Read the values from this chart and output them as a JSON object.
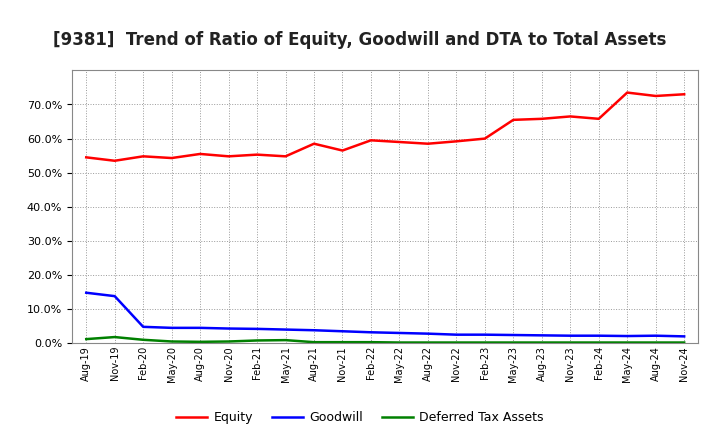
{
  "title": "[9381]  Trend of Ratio of Equity, Goodwill and DTA to Total Assets",
  "x_labels": [
    "Aug-19",
    "Nov-19",
    "Feb-20",
    "May-20",
    "Aug-20",
    "Nov-20",
    "Feb-21",
    "May-21",
    "Aug-21",
    "Nov-21",
    "Feb-22",
    "May-22",
    "Aug-22",
    "Nov-22",
    "Feb-23",
    "May-23",
    "Aug-23",
    "Nov-23",
    "Feb-24",
    "May-24",
    "Aug-24",
    "Nov-24"
  ],
  "equity": [
    54.5,
    53.5,
    54.8,
    54.3,
    55.5,
    54.8,
    55.3,
    54.8,
    58.5,
    56.5,
    59.5,
    59.0,
    58.5,
    59.2,
    60.0,
    65.5,
    65.8,
    66.5,
    65.8,
    73.5,
    72.5,
    73.0
  ],
  "goodwill": [
    14.8,
    13.8,
    4.8,
    4.5,
    4.5,
    4.3,
    4.2,
    4.0,
    3.8,
    3.5,
    3.2,
    3.0,
    2.8,
    2.5,
    2.5,
    2.4,
    2.3,
    2.2,
    2.2,
    2.1,
    2.2,
    2.0
  ],
  "dta": [
    1.2,
    1.8,
    1.0,
    0.5,
    0.4,
    0.5,
    0.8,
    0.9,
    0.3,
    0.3,
    0.3,
    0.2,
    0.2,
    0.2,
    0.2,
    0.2,
    0.2,
    0.2,
    0.2,
    0.2,
    0.2,
    0.2
  ],
  "equity_color": "#ff0000",
  "goodwill_color": "#0000ff",
  "dta_color": "#008000",
  "ylim": [
    0,
    80
  ],
  "yticks": [
    0,
    10,
    20,
    30,
    40,
    50,
    60,
    70
  ],
  "background_color": "#ffffff",
  "plot_bg_color": "#ffffff",
  "grid_color": "#999999",
  "title_fontsize": 12,
  "legend_labels": [
    "Equity",
    "Goodwill",
    "Deferred Tax Assets"
  ]
}
